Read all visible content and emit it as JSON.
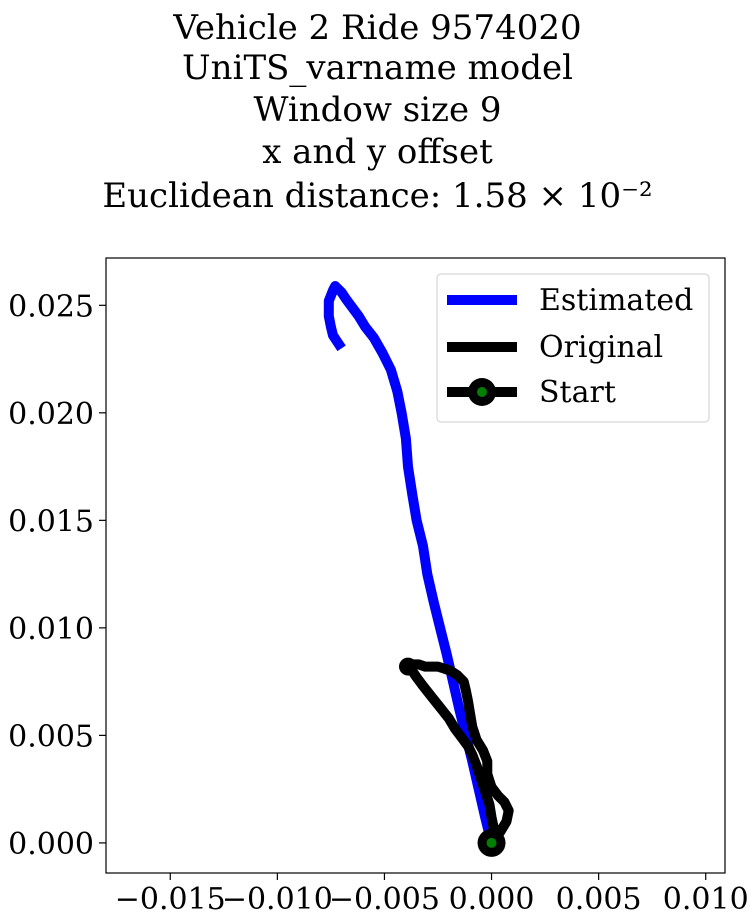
{
  "chart_data": {
    "type": "line",
    "title_lines": [
      "Vehicle 2 Ride 9574020",
      "UniTS_varname model",
      "Window size 9",
      "x and y offset",
      "Euclidean distance: 1.58 × 10⁻²"
    ],
    "xlabel": "",
    "ylabel": "",
    "xlim": [
      -0.018,
      0.0109
    ],
    "ylim": [
      -0.0014,
      0.0272
    ],
    "x_ticks": [
      -0.015,
      -0.01,
      -0.005,
      0.0,
      0.005,
      0.01
    ],
    "x_tick_labels": [
      "−0.015",
      "−0.010",
      "−0.005",
      "0.000",
      "0.005",
      "0.010"
    ],
    "y_ticks": [
      0.0,
      0.005,
      0.01,
      0.015,
      0.02,
      0.025
    ],
    "y_tick_labels": [
      "0.000",
      "0.005",
      "0.010",
      "0.015",
      "0.020",
      "0.025"
    ],
    "grid": false,
    "legend_position": "top-right",
    "series": [
      {
        "name": "Estimated",
        "color": "#0000ff",
        "x": [
          0.0,
          -0.0003,
          -0.0006,
          -0.0009,
          -0.0012,
          -0.0015,
          -0.0018,
          -0.0021,
          -0.0024,
          -0.0027,
          -0.003,
          -0.0032,
          -0.0035,
          -0.0037,
          -0.0039,
          -0.004,
          -0.0042,
          -0.0044,
          -0.0047,
          -0.0051,
          -0.0055,
          -0.0059,
          -0.0062,
          -0.0065,
          -0.0068,
          -0.007,
          -0.0072,
          -0.0073,
          -0.0074,
          -0.0076,
          -0.0076,
          -0.0075,
          -0.0074,
          -0.0072,
          -0.007
        ],
        "y": [
          0.0,
          0.0012,
          0.0025,
          0.0038,
          0.005,
          0.0062,
          0.0075,
          0.0088,
          0.01,
          0.0112,
          0.0125,
          0.0138,
          0.015,
          0.0162,
          0.0175,
          0.0188,
          0.02,
          0.021,
          0.022,
          0.0228,
          0.0235,
          0.024,
          0.0245,
          0.0249,
          0.0253,
          0.0256,
          0.0258,
          0.0259,
          0.0257,
          0.0252,
          0.0245,
          0.024,
          0.0236,
          0.0233,
          0.023
        ]
      },
      {
        "name": "Original",
        "color": "#000000",
        "x": [
          0.0,
          0.0004,
          0.0007,
          0.0008,
          0.0006,
          0.0003,
          0.0,
          -0.0002,
          -0.0002,
          -0.0004,
          -0.0007,
          -0.0009,
          -0.001,
          -0.0011,
          -0.0012,
          -0.0013,
          -0.0016,
          -0.0019,
          -0.0022,
          -0.0025,
          -0.0028,
          -0.0031,
          -0.0034,
          -0.0036,
          -0.0038,
          -0.0039,
          -0.004,
          -0.004,
          -0.0039,
          -0.0038,
          -0.0037,
          -0.0035,
          -0.0032,
          -0.0028,
          -0.0024,
          -0.002,
          -0.0017,
          -0.0014,
          -0.0011,
          -0.0009,
          -0.0007,
          -0.0005,
          -0.0003,
          -0.0001,
          0.0,
          0.0001,
          0.0,
          -0.0001
        ],
        "y": [
          0.0,
          0.0005,
          0.001,
          0.0015,
          0.0019,
          0.0022,
          0.0026,
          0.0032,
          0.0038,
          0.0043,
          0.0048,
          0.0054,
          0.006,
          0.0066,
          0.0071,
          0.0075,
          0.0078,
          0.008,
          0.0081,
          0.0082,
          0.0082,
          0.0082,
          0.0083,
          0.0083,
          0.0083,
          0.0082,
          0.0082,
          0.0081,
          0.0081,
          0.0081,
          0.008,
          0.0077,
          0.0073,
          0.0068,
          0.0063,
          0.0058,
          0.0053,
          0.0049,
          0.0045,
          0.0041,
          0.0036,
          0.003,
          0.0024,
          0.0018,
          0.0012,
          0.0007,
          0.0003,
          0.0
        ]
      },
      {
        "name": "Start",
        "color": "#000000",
        "marker_fill": "#008000",
        "x": [
          0.0
        ],
        "y": [
          0.0
        ]
      }
    ]
  }
}
